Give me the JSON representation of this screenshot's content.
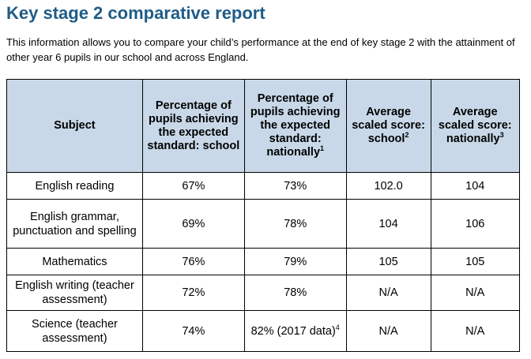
{
  "title": "Key stage 2 comparative report",
  "intro": "This information allows you to compare your child’s performance at the end of key stage 2 with the attainment of other year 6 pupils in our school and across England.",
  "table": {
    "headers": [
      {
        "text": "Subject",
        "sup": ""
      },
      {
        "text": "Percentage of pupils achieving the expected standard: school",
        "sup": ""
      },
      {
        "text": "Percentage of pupils achieving the expected standard: nationally",
        "sup": "1"
      },
      {
        "text": "Average scaled score: school",
        "sup": "2"
      },
      {
        "text": "Average scaled score: nationally",
        "sup": "3"
      }
    ],
    "rows": [
      {
        "subject": "English reading",
        "school_pct": "67%",
        "national_pct": "73%",
        "national_pct_sup": "",
        "school_score": "102.0",
        "national_score": "104"
      },
      {
        "subject": "English grammar, punctuation and spelling",
        "school_pct": "69%",
        "national_pct": "78%",
        "national_pct_sup": "",
        "school_score": "104",
        "national_score": "106"
      },
      {
        "subject": "Mathematics",
        "school_pct": "76%",
        "national_pct": "79%",
        "national_pct_sup": "",
        "school_score": "105",
        "national_score": "105"
      },
      {
        "subject": "English writing (teacher assessment)",
        "school_pct": "72%",
        "national_pct": "78%",
        "national_pct_sup": "",
        "school_score": "N/A",
        "national_score": "N/A"
      },
      {
        "subject": "Science (teacher assessment)",
        "school_pct": "74%",
        "national_pct": "82% (2017 data)",
        "national_pct_sup": "4",
        "school_score": "N/A",
        "national_score": "N/A"
      }
    ]
  }
}
